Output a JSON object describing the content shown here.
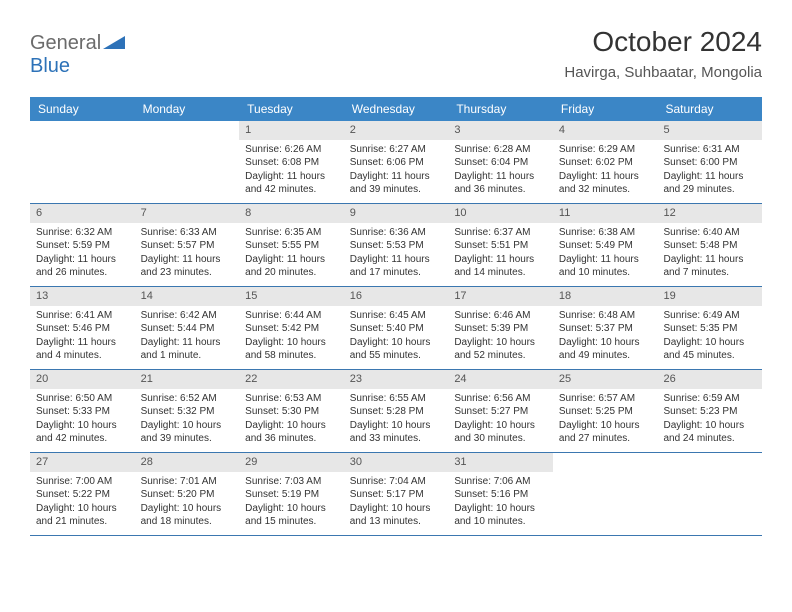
{
  "logo": {
    "text1": "General",
    "text2": "Blue"
  },
  "title": "October 2024",
  "location": "Havirga, Suhbaatar, Mongolia",
  "colors": {
    "header_bg": "#3b86c6",
    "header_text": "#ffffff",
    "daynum_bg": "#e7e7e7",
    "row_border": "#3b77b0",
    "logo_gray": "#6b6b6b",
    "logo_blue": "#2d72b8"
  },
  "weekdays": [
    "Sunday",
    "Monday",
    "Tuesday",
    "Wednesday",
    "Thursday",
    "Friday",
    "Saturday"
  ],
  "weeks": [
    [
      {
        "n": "",
        "sr": "",
        "ss": "",
        "dl": ""
      },
      {
        "n": "",
        "sr": "",
        "ss": "",
        "dl": ""
      },
      {
        "n": "1",
        "sr": "Sunrise: 6:26 AM",
        "ss": "Sunset: 6:08 PM",
        "dl": "Daylight: 11 hours and 42 minutes."
      },
      {
        "n": "2",
        "sr": "Sunrise: 6:27 AM",
        "ss": "Sunset: 6:06 PM",
        "dl": "Daylight: 11 hours and 39 minutes."
      },
      {
        "n": "3",
        "sr": "Sunrise: 6:28 AM",
        "ss": "Sunset: 6:04 PM",
        "dl": "Daylight: 11 hours and 36 minutes."
      },
      {
        "n": "4",
        "sr": "Sunrise: 6:29 AM",
        "ss": "Sunset: 6:02 PM",
        "dl": "Daylight: 11 hours and 32 minutes."
      },
      {
        "n": "5",
        "sr": "Sunrise: 6:31 AM",
        "ss": "Sunset: 6:00 PM",
        "dl": "Daylight: 11 hours and 29 minutes."
      }
    ],
    [
      {
        "n": "6",
        "sr": "Sunrise: 6:32 AM",
        "ss": "Sunset: 5:59 PM",
        "dl": "Daylight: 11 hours and 26 minutes."
      },
      {
        "n": "7",
        "sr": "Sunrise: 6:33 AM",
        "ss": "Sunset: 5:57 PM",
        "dl": "Daylight: 11 hours and 23 minutes."
      },
      {
        "n": "8",
        "sr": "Sunrise: 6:35 AM",
        "ss": "Sunset: 5:55 PM",
        "dl": "Daylight: 11 hours and 20 minutes."
      },
      {
        "n": "9",
        "sr": "Sunrise: 6:36 AM",
        "ss": "Sunset: 5:53 PM",
        "dl": "Daylight: 11 hours and 17 minutes."
      },
      {
        "n": "10",
        "sr": "Sunrise: 6:37 AM",
        "ss": "Sunset: 5:51 PM",
        "dl": "Daylight: 11 hours and 14 minutes."
      },
      {
        "n": "11",
        "sr": "Sunrise: 6:38 AM",
        "ss": "Sunset: 5:49 PM",
        "dl": "Daylight: 11 hours and 10 minutes."
      },
      {
        "n": "12",
        "sr": "Sunrise: 6:40 AM",
        "ss": "Sunset: 5:48 PM",
        "dl": "Daylight: 11 hours and 7 minutes."
      }
    ],
    [
      {
        "n": "13",
        "sr": "Sunrise: 6:41 AM",
        "ss": "Sunset: 5:46 PM",
        "dl": "Daylight: 11 hours and 4 minutes."
      },
      {
        "n": "14",
        "sr": "Sunrise: 6:42 AM",
        "ss": "Sunset: 5:44 PM",
        "dl": "Daylight: 11 hours and 1 minute."
      },
      {
        "n": "15",
        "sr": "Sunrise: 6:44 AM",
        "ss": "Sunset: 5:42 PM",
        "dl": "Daylight: 10 hours and 58 minutes."
      },
      {
        "n": "16",
        "sr": "Sunrise: 6:45 AM",
        "ss": "Sunset: 5:40 PM",
        "dl": "Daylight: 10 hours and 55 minutes."
      },
      {
        "n": "17",
        "sr": "Sunrise: 6:46 AM",
        "ss": "Sunset: 5:39 PM",
        "dl": "Daylight: 10 hours and 52 minutes."
      },
      {
        "n": "18",
        "sr": "Sunrise: 6:48 AM",
        "ss": "Sunset: 5:37 PM",
        "dl": "Daylight: 10 hours and 49 minutes."
      },
      {
        "n": "19",
        "sr": "Sunrise: 6:49 AM",
        "ss": "Sunset: 5:35 PM",
        "dl": "Daylight: 10 hours and 45 minutes."
      }
    ],
    [
      {
        "n": "20",
        "sr": "Sunrise: 6:50 AM",
        "ss": "Sunset: 5:33 PM",
        "dl": "Daylight: 10 hours and 42 minutes."
      },
      {
        "n": "21",
        "sr": "Sunrise: 6:52 AM",
        "ss": "Sunset: 5:32 PM",
        "dl": "Daylight: 10 hours and 39 minutes."
      },
      {
        "n": "22",
        "sr": "Sunrise: 6:53 AM",
        "ss": "Sunset: 5:30 PM",
        "dl": "Daylight: 10 hours and 36 minutes."
      },
      {
        "n": "23",
        "sr": "Sunrise: 6:55 AM",
        "ss": "Sunset: 5:28 PM",
        "dl": "Daylight: 10 hours and 33 minutes."
      },
      {
        "n": "24",
        "sr": "Sunrise: 6:56 AM",
        "ss": "Sunset: 5:27 PM",
        "dl": "Daylight: 10 hours and 30 minutes."
      },
      {
        "n": "25",
        "sr": "Sunrise: 6:57 AM",
        "ss": "Sunset: 5:25 PM",
        "dl": "Daylight: 10 hours and 27 minutes."
      },
      {
        "n": "26",
        "sr": "Sunrise: 6:59 AM",
        "ss": "Sunset: 5:23 PM",
        "dl": "Daylight: 10 hours and 24 minutes."
      }
    ],
    [
      {
        "n": "27",
        "sr": "Sunrise: 7:00 AM",
        "ss": "Sunset: 5:22 PM",
        "dl": "Daylight: 10 hours and 21 minutes."
      },
      {
        "n": "28",
        "sr": "Sunrise: 7:01 AM",
        "ss": "Sunset: 5:20 PM",
        "dl": "Daylight: 10 hours and 18 minutes."
      },
      {
        "n": "29",
        "sr": "Sunrise: 7:03 AM",
        "ss": "Sunset: 5:19 PM",
        "dl": "Daylight: 10 hours and 15 minutes."
      },
      {
        "n": "30",
        "sr": "Sunrise: 7:04 AM",
        "ss": "Sunset: 5:17 PM",
        "dl": "Daylight: 10 hours and 13 minutes."
      },
      {
        "n": "31",
        "sr": "Sunrise: 7:06 AM",
        "ss": "Sunset: 5:16 PM",
        "dl": "Daylight: 10 hours and 10 minutes."
      },
      {
        "n": "",
        "sr": "",
        "ss": "",
        "dl": ""
      },
      {
        "n": "",
        "sr": "",
        "ss": "",
        "dl": ""
      }
    ]
  ]
}
